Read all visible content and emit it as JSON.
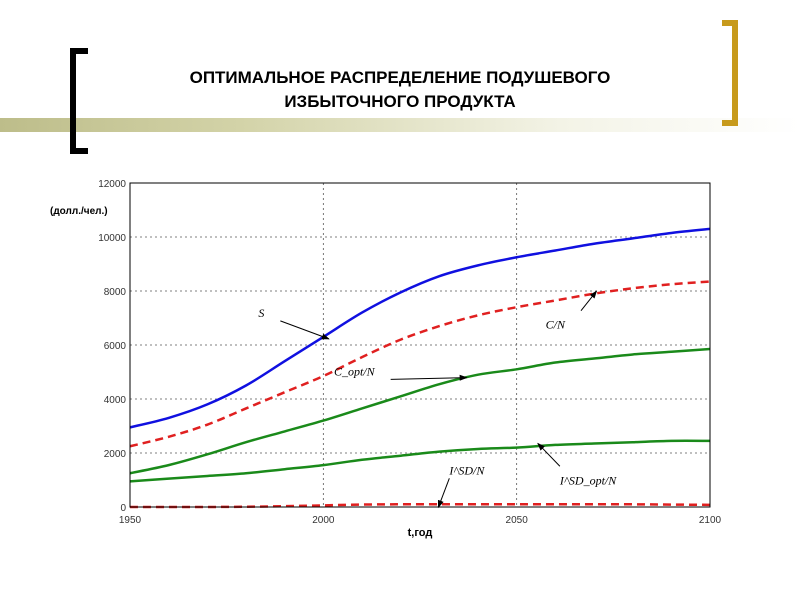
{
  "slide": {
    "title_line1": "ОПТИМАЛЬНОЕ РАСПРЕДЕЛЕНИЕ ПОДУШЕВОГО",
    "title_line2": "ИЗБЫТОЧНОГО ПРОДУКТА"
  },
  "chart_data": {
    "type": "line",
    "title": "",
    "xlabel": "t,год",
    "ylabel": "(долл./чел.)",
    "xlim": [
      1950,
      2100
    ],
    "ylim": [
      0,
      12000
    ],
    "xticks": [
      1950,
      2000,
      2050,
      2100
    ],
    "yticks": [
      0,
      2000,
      4000,
      6000,
      8000,
      10000,
      12000
    ],
    "grid": true,
    "x": [
      1950,
      1960,
      1970,
      1980,
      1990,
      2000,
      2010,
      2020,
      2030,
      2040,
      2050,
      2060,
      2070,
      2080,
      2090,
      2100
    ],
    "series": [
      {
        "name": "S",
        "color": "#1010e0",
        "style": "solid",
        "values": [
          2950,
          3300,
          3800,
          4500,
          5400,
          6300,
          7200,
          7950,
          8550,
          8950,
          9250,
          9500,
          9750,
          9950,
          10150,
          10300
        ]
      },
      {
        "name": "C/N",
        "color": "#e02020",
        "style": "dashed",
        "values": [
          2250,
          2600,
          3050,
          3650,
          4250,
          4850,
          5550,
          6200,
          6700,
          7100,
          7400,
          7650,
          7900,
          8100,
          8250,
          8350
        ]
      },
      {
        "name": "C_opt/N",
        "color": "#1a8a1a",
        "style": "solid",
        "values": [
          1250,
          1550,
          1950,
          2400,
          2800,
          3200,
          3650,
          4100,
          4550,
          4900,
          5100,
          5350,
          5500,
          5650,
          5750,
          5850
        ]
      },
      {
        "name": "I^SD_opt/N",
        "color": "#1a8a1a",
        "style": "solid",
        "values": [
          950,
          1050,
          1150,
          1250,
          1400,
          1550,
          1750,
          1900,
          2050,
          2150,
          2200,
          2300,
          2350,
          2400,
          2450,
          2450
        ]
      },
      {
        "name": "I^SD/N",
        "color": "#e02020",
        "style": "dashed",
        "values": [
          0,
          0,
          0,
          10,
          30,
          60,
          90,
          100,
          100,
          100,
          100,
          100,
          100,
          100,
          90,
          80
        ]
      }
    ],
    "annotations": [
      {
        "text": "S",
        "target": "S",
        "at": [
          2000,
          6300
        ]
      },
      {
        "text": "C/N",
        "target": "C/N",
        "at": [
          2070,
          7900
        ]
      },
      {
        "text": "C_opt/N",
        "target": "C_opt/N",
        "at": [
          2035,
          4800
        ]
      },
      {
        "text": "I^SD_opt/N",
        "target": "I^SD_opt/N",
        "at": [
          2056,
          2250
        ]
      },
      {
        "text": "I^SD/N",
        "target": "I^SD/N",
        "at": [
          2030,
          100
        ]
      }
    ]
  }
}
